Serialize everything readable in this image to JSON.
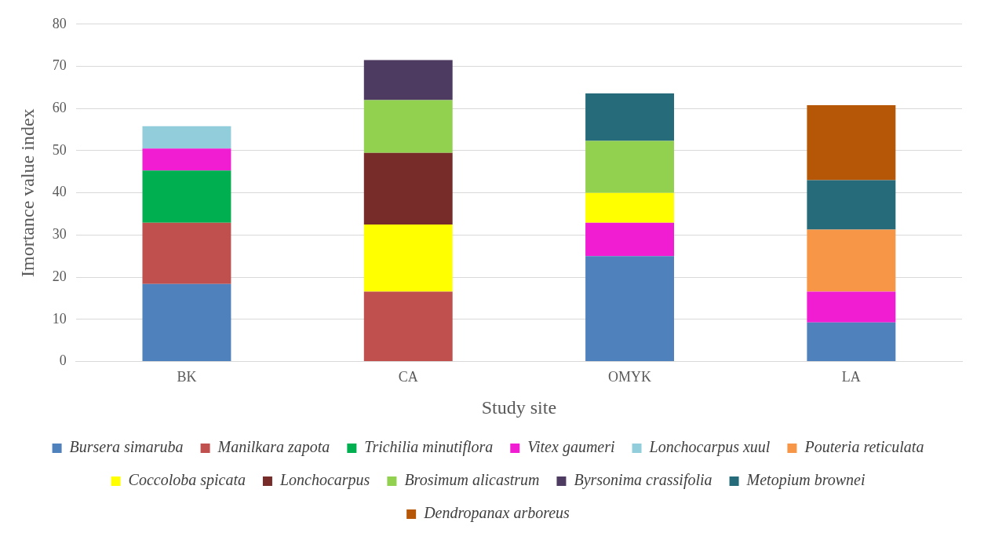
{
  "chart_data": {
    "type": "bar",
    "stacked": true,
    "xlabel": "Study site",
    "ylabel": "Imortance value index",
    "categories": [
      "BK",
      "CA",
      "OMYK",
      "LA"
    ],
    "ylim": [
      0,
      80
    ],
    "yticks": [
      0,
      10,
      20,
      30,
      40,
      50,
      60,
      70,
      80
    ],
    "grid": "y",
    "legend": "bottom",
    "series": [
      {
        "name": "Bursera simaruba",
        "color": "#4f81bd",
        "values": [
          18.4,
          null,
          25.0,
          9.3
        ]
      },
      {
        "name": "Manilkara zapota",
        "color": "#c0504d",
        "values": [
          14.5,
          16.6,
          null,
          null
        ]
      },
      {
        "name": "Trichilia minutiflora",
        "color": "#00b050",
        "values": [
          12.4,
          null,
          null,
          null
        ]
      },
      {
        "name": "Vitex gaumeri",
        "color": "#f01dd2",
        "values": [
          5.2,
          null,
          7.9,
          7.3
        ]
      },
      {
        "name": "Lonchocarpus xuul",
        "color": "#92cddc",
        "values": [
          5.3,
          null,
          null,
          null
        ]
      },
      {
        "name": "Pouteria reticulata",
        "color": "#f79646",
        "values": [
          null,
          null,
          null,
          14.7
        ]
      },
      {
        "name": "Coccoloba spicata",
        "color": "#ffff00",
        "values": [
          null,
          15.9,
          7.1,
          null
        ]
      },
      {
        "name": "Lonchocarpus",
        "color": "#772c2a",
        "values": [
          null,
          17.0,
          null,
          null
        ]
      },
      {
        "name": "Brosimum alicastrum",
        "color": "#92d050",
        "values": [
          null,
          12.5,
          12.3,
          null
        ]
      },
      {
        "name": "Byrsonima crassifolia",
        "color": "#4d3b62",
        "values": [
          null,
          9.5,
          null,
          null
        ]
      },
      {
        "name": "Metopium brownei",
        "color": "#266b7a",
        "values": [
          null,
          null,
          11.3,
          11.7
        ]
      },
      {
        "name": "Dendropanax arboreus",
        "color": "#b65708",
        "values": [
          null,
          null,
          null,
          17.8
        ]
      }
    ]
  }
}
